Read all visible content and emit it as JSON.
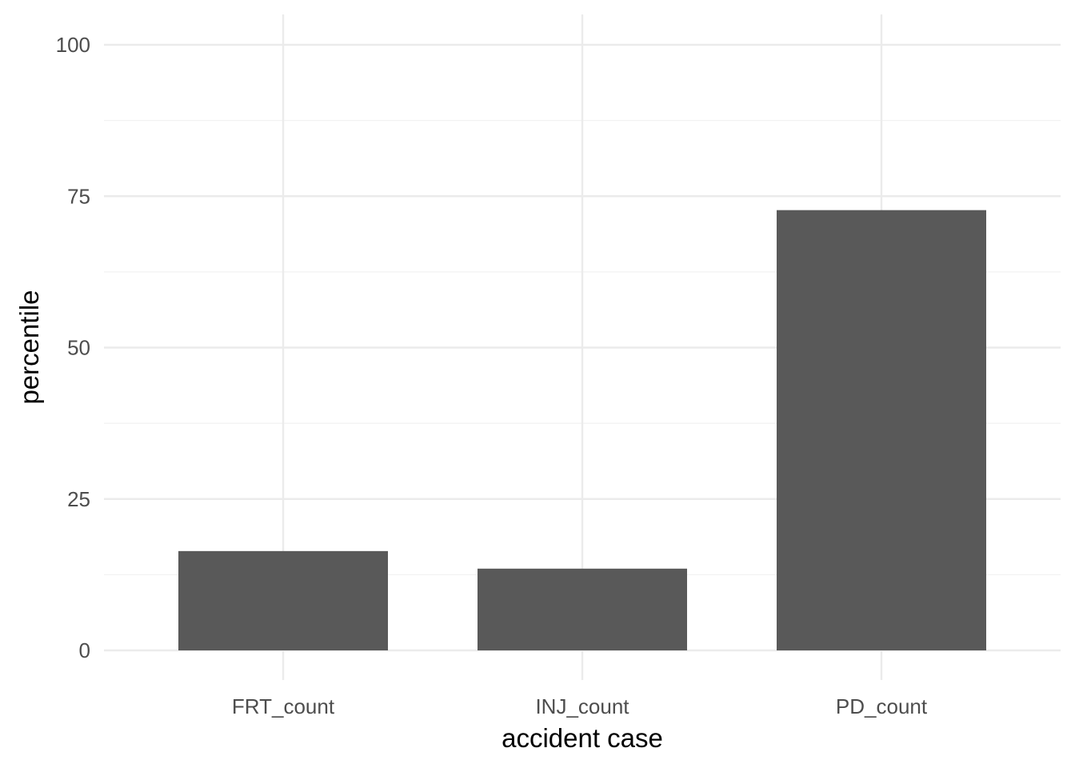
{
  "chart_data": {
    "type": "bar",
    "title": "",
    "xlabel": "accident case",
    "ylabel": "percentile",
    "categories": [
      "FRT_count",
      "INJ_count",
      "PD_count"
    ],
    "values": [
      16.4,
      13.5,
      72.7
    ],
    "ylim": [
      0,
      100
    ],
    "yticks": [
      0,
      25,
      50,
      75,
      100
    ],
    "yticks_minor": [
      12.5,
      37.5,
      62.5,
      87.5
    ],
    "grid": true,
    "legend": "none",
    "colors": {
      "bar": "#595959",
      "grid_major": "#ebebeb",
      "grid_minor": "#f2f2f2",
      "background": "#ffffff"
    }
  }
}
